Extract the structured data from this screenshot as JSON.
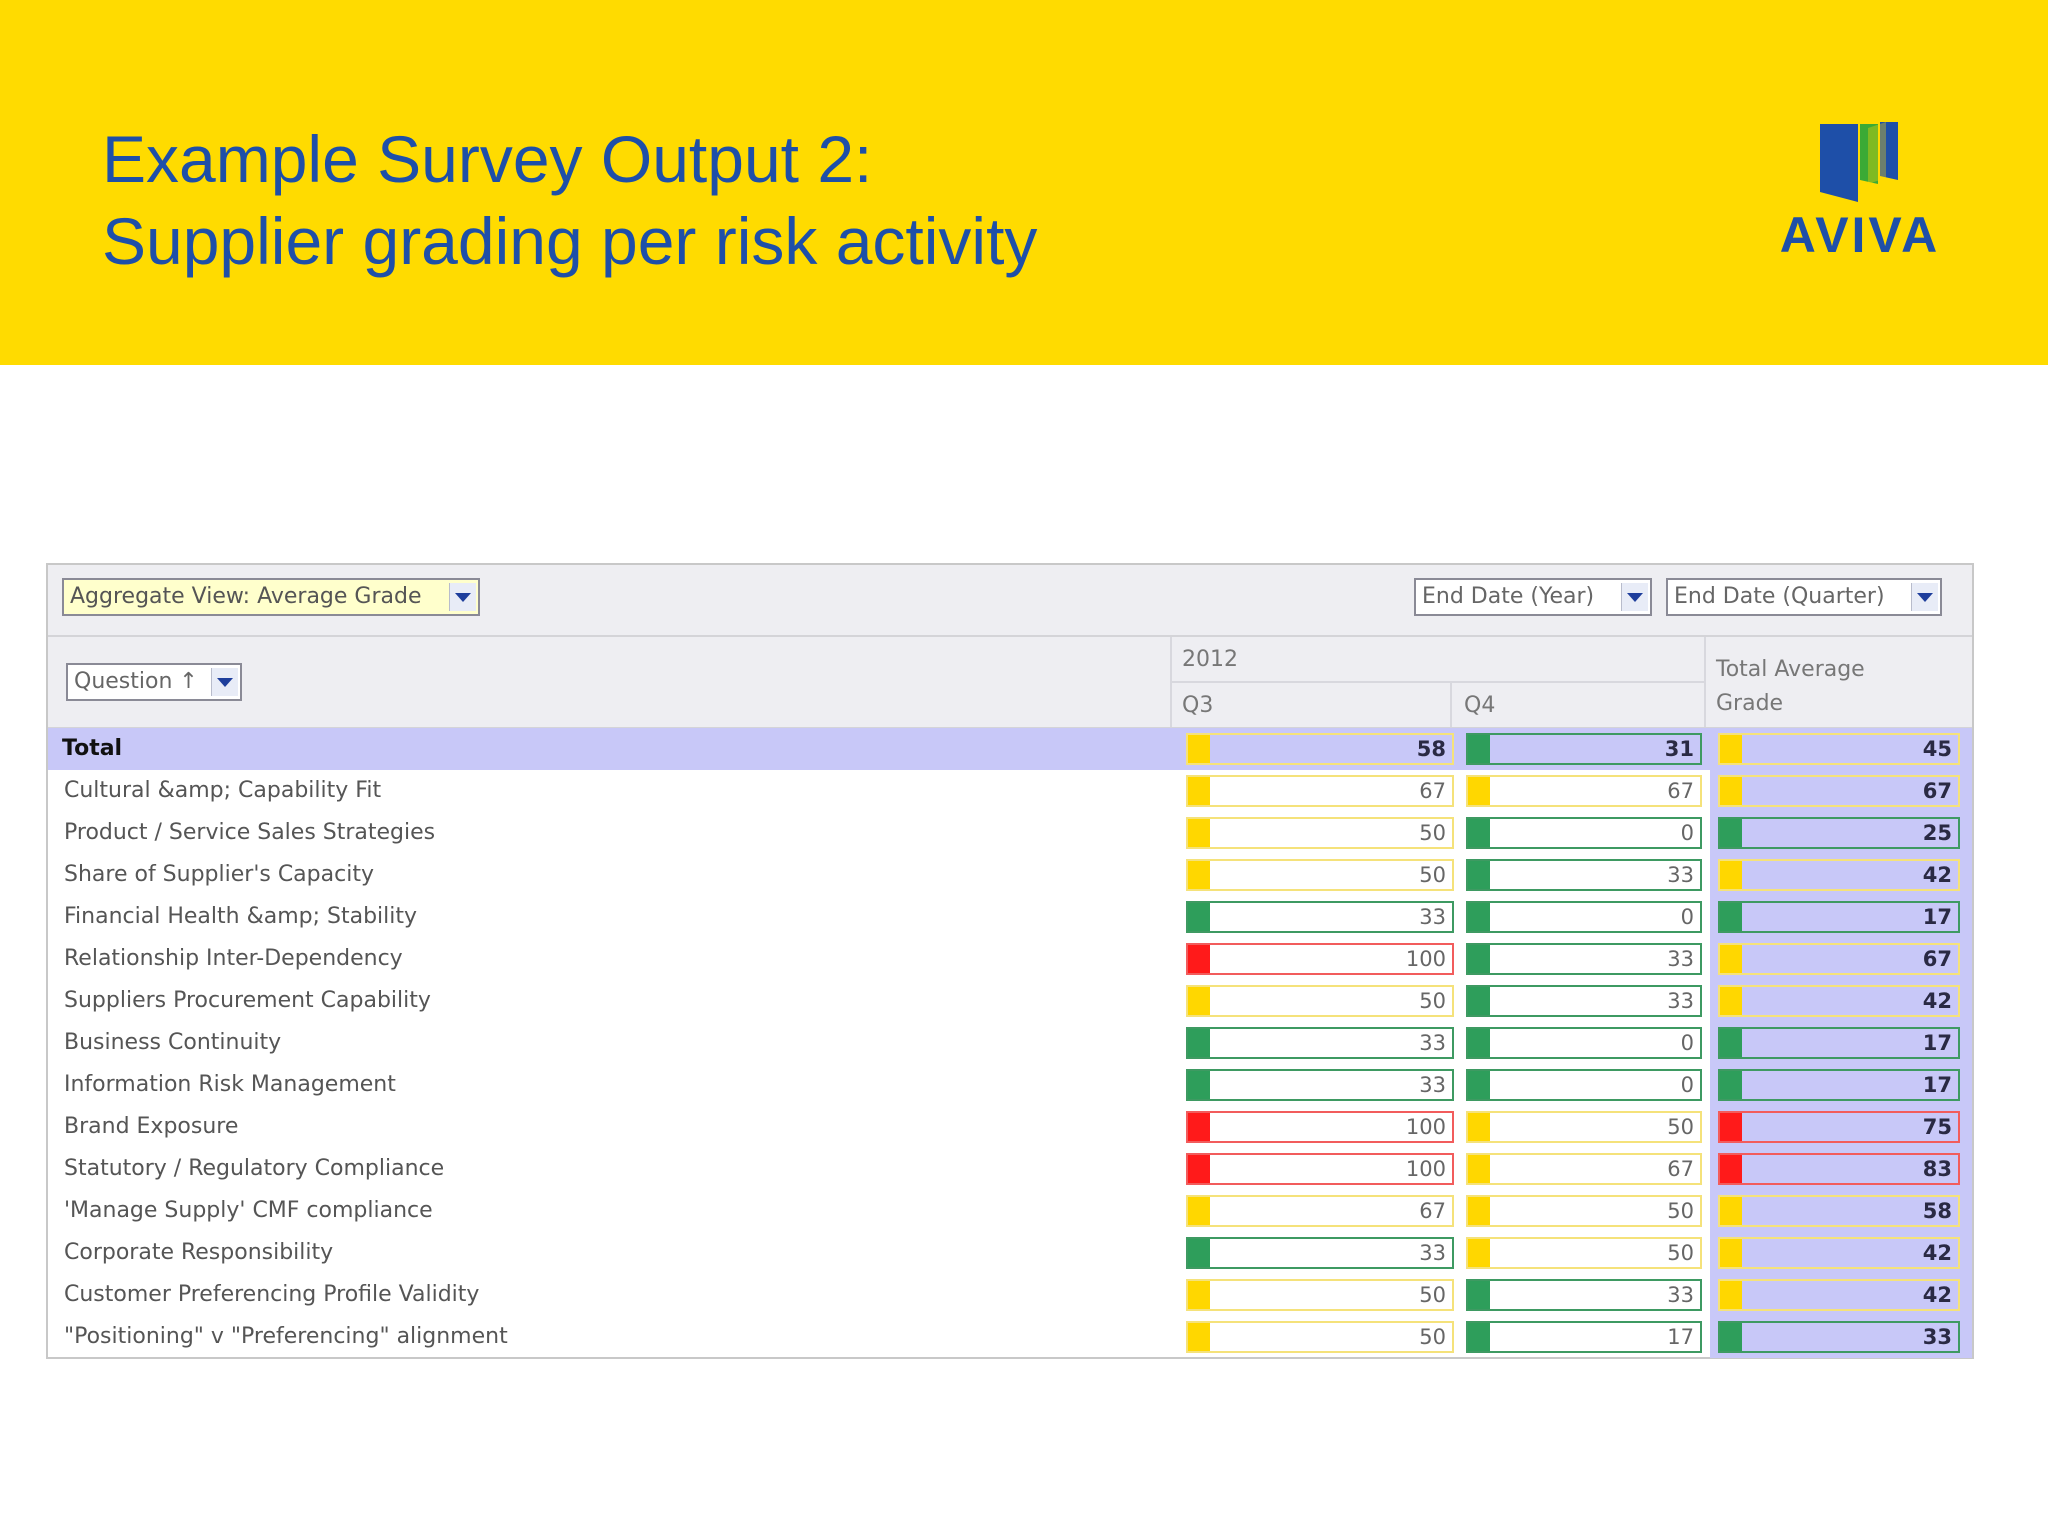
{
  "header": {
    "title_line1": "Example Survey Output 2:",
    "title_line2": "Supplier grading per risk activity",
    "logo_text": "AVIVA"
  },
  "colors": {
    "banner": "#FFDB00",
    "title": "#1E4FA8",
    "grade_yellow": "#FFD700",
    "grade_green": "#2E9E5B",
    "grade_red": "#FF1A1A",
    "total_row": "#C8C8F8"
  },
  "toolbar": {
    "aggregate_view": "Aggregate View: Average Grade",
    "end_date_year": "End Date (Year)",
    "end_date_quarter": "End Date (Quarter)"
  },
  "columns": {
    "question_selector": "Question ↑",
    "year": "2012",
    "q3": "Q3",
    "q4": "Q4",
    "total_line1": "Total Average",
    "total_line2": "Grade"
  },
  "rows": [
    {
      "label": "Total",
      "q3": {
        "value": "58",
        "grade": "yellow"
      },
      "q4": {
        "value": "31",
        "grade": "green"
      },
      "total": {
        "value": "45",
        "grade": "yellow"
      }
    },
    {
      "label": "Cultural &amp; Capability Fit",
      "q3": {
        "value": "67",
        "grade": "yellow"
      },
      "q4": {
        "value": "67",
        "grade": "yellow"
      },
      "total": {
        "value": "67",
        "grade": "yellow"
      }
    },
    {
      "label": "Product / Service Sales Strategies",
      "q3": {
        "value": "50",
        "grade": "yellow"
      },
      "q4": {
        "value": "0",
        "grade": "green"
      },
      "total": {
        "value": "25",
        "grade": "green"
      }
    },
    {
      "label": "Share of Supplier's Capacity",
      "q3": {
        "value": "50",
        "grade": "yellow"
      },
      "q4": {
        "value": "33",
        "grade": "green"
      },
      "total": {
        "value": "42",
        "grade": "yellow"
      }
    },
    {
      "label": "Financial Health &amp; Stability",
      "q3": {
        "value": "33",
        "grade": "green"
      },
      "q4": {
        "value": "0",
        "grade": "green"
      },
      "total": {
        "value": "17",
        "grade": "green"
      }
    },
    {
      "label": "Relationship Inter-Dependency",
      "q3": {
        "value": "100",
        "grade": "red"
      },
      "q4": {
        "value": "33",
        "grade": "green"
      },
      "total": {
        "value": "67",
        "grade": "yellow"
      }
    },
    {
      "label": "Suppliers Procurement Capability",
      "q3": {
        "value": "50",
        "grade": "yellow"
      },
      "q4": {
        "value": "33",
        "grade": "green"
      },
      "total": {
        "value": "42",
        "grade": "yellow"
      }
    },
    {
      "label": "Business Continuity",
      "q3": {
        "value": "33",
        "grade": "green"
      },
      "q4": {
        "value": "0",
        "grade": "green"
      },
      "total": {
        "value": "17",
        "grade": "green"
      }
    },
    {
      "label": "Information Risk Management",
      "q3": {
        "value": "33",
        "grade": "green"
      },
      "q4": {
        "value": "0",
        "grade": "green"
      },
      "total": {
        "value": "17",
        "grade": "green"
      }
    },
    {
      "label": "Brand Exposure",
      "q3": {
        "value": "100",
        "grade": "red"
      },
      "q4": {
        "value": "50",
        "grade": "yellow"
      },
      "total": {
        "value": "75",
        "grade": "red"
      }
    },
    {
      "label": "Statutory / Regulatory Compliance",
      "q3": {
        "value": "100",
        "grade": "red"
      },
      "q4": {
        "value": "67",
        "grade": "yellow"
      },
      "total": {
        "value": "83",
        "grade": "red"
      }
    },
    {
      "label": "'Manage Supply' CMF compliance",
      "q3": {
        "value": "67",
        "grade": "yellow"
      },
      "q4": {
        "value": "50",
        "grade": "yellow"
      },
      "total": {
        "value": "58",
        "grade": "yellow"
      }
    },
    {
      "label": "Corporate Responsibility",
      "q3": {
        "value": "33",
        "grade": "green"
      },
      "q4": {
        "value": "50",
        "grade": "yellow"
      },
      "total": {
        "value": "42",
        "grade": "yellow"
      }
    },
    {
      "label": "Customer Preferencing Profile Validity",
      "q3": {
        "value": "50",
        "grade": "yellow"
      },
      "q4": {
        "value": "33",
        "grade": "green"
      },
      "total": {
        "value": "42",
        "grade": "yellow"
      }
    },
    {
      "label": "\"Positioning\" v \"Preferencing\" alignment",
      "q3": {
        "value": "50",
        "grade": "yellow"
      },
      "q4": {
        "value": "17",
        "grade": "green"
      },
      "total": {
        "value": "33",
        "grade": "green"
      }
    }
  ]
}
